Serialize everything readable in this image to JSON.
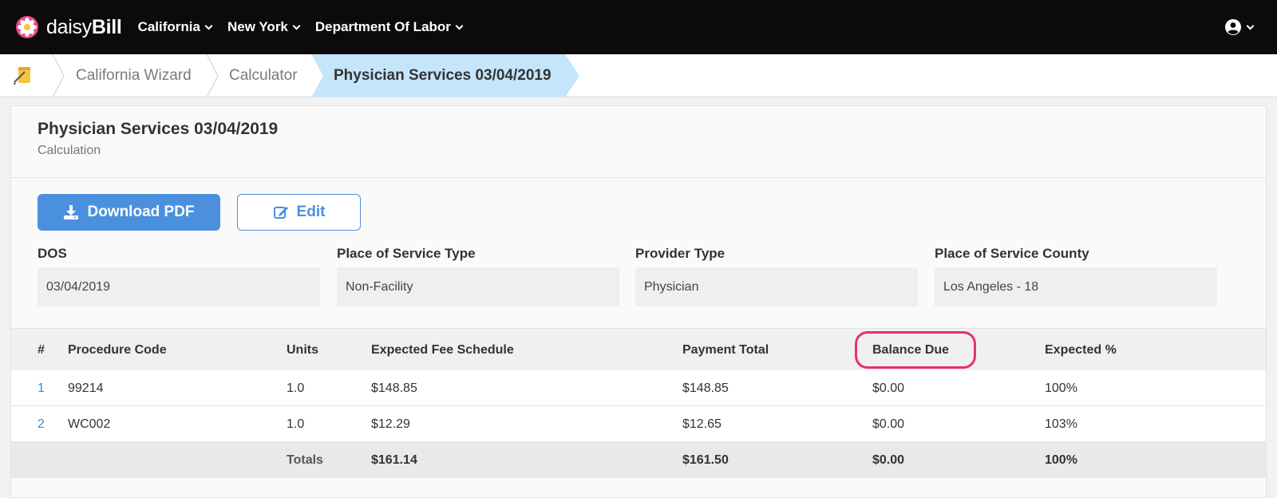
{
  "nav": {
    "brand_light": "daisy",
    "brand_bold": "Bill",
    "items": [
      {
        "label": "California"
      },
      {
        "label": "New York"
      },
      {
        "label": "Department Of Labor"
      }
    ],
    "user_icon": "user-circle-icon"
  },
  "breadcrumb": {
    "home_icon": "notepad-icon",
    "items": [
      {
        "label": "California Wizard"
      },
      {
        "label": "Calculator"
      },
      {
        "label": "Physician Services 03/04/2019"
      }
    ],
    "active_color": "#c5e5fb"
  },
  "page": {
    "title": "Physician Services 03/04/2019",
    "subtitle": "Calculation"
  },
  "actions": {
    "download_label": "Download PDF",
    "download_icon": "download-icon",
    "edit_label": "Edit",
    "edit_icon": "edit-icon",
    "primary_color": "#4a90dc"
  },
  "fields": [
    {
      "label": "DOS",
      "value": "03/04/2019"
    },
    {
      "label": "Place of Service Type",
      "value": "Non-Facility"
    },
    {
      "label": "Provider Type",
      "value": "Physician"
    },
    {
      "label": "Place of Service County",
      "value": "Los Angeles - 18"
    }
  ],
  "table": {
    "columns": [
      "#",
      "Procedure Code",
      "Units",
      "Expected Fee Schedule",
      "Payment Total",
      "Balance Due",
      "Expected %"
    ],
    "highlighted_column": "Balance Due",
    "highlight_color": "#e8306a",
    "rows": [
      {
        "num": "1",
        "code": "99214",
        "units": "1.0",
        "expected_fee": "$148.85",
        "payment_total": "$148.85",
        "balance_due": "$0.00",
        "expected_pct": "100%"
      },
      {
        "num": "2",
        "code": "WC002",
        "units": "1.0",
        "expected_fee": "$12.29",
        "payment_total": "$12.65",
        "balance_due": "$0.00",
        "expected_pct": "103%"
      }
    ],
    "totals": {
      "label": "Totals",
      "expected_fee": "$161.14",
      "payment_total": "$161.50",
      "balance_due": "$0.00",
      "expected_pct": "100%"
    }
  }
}
